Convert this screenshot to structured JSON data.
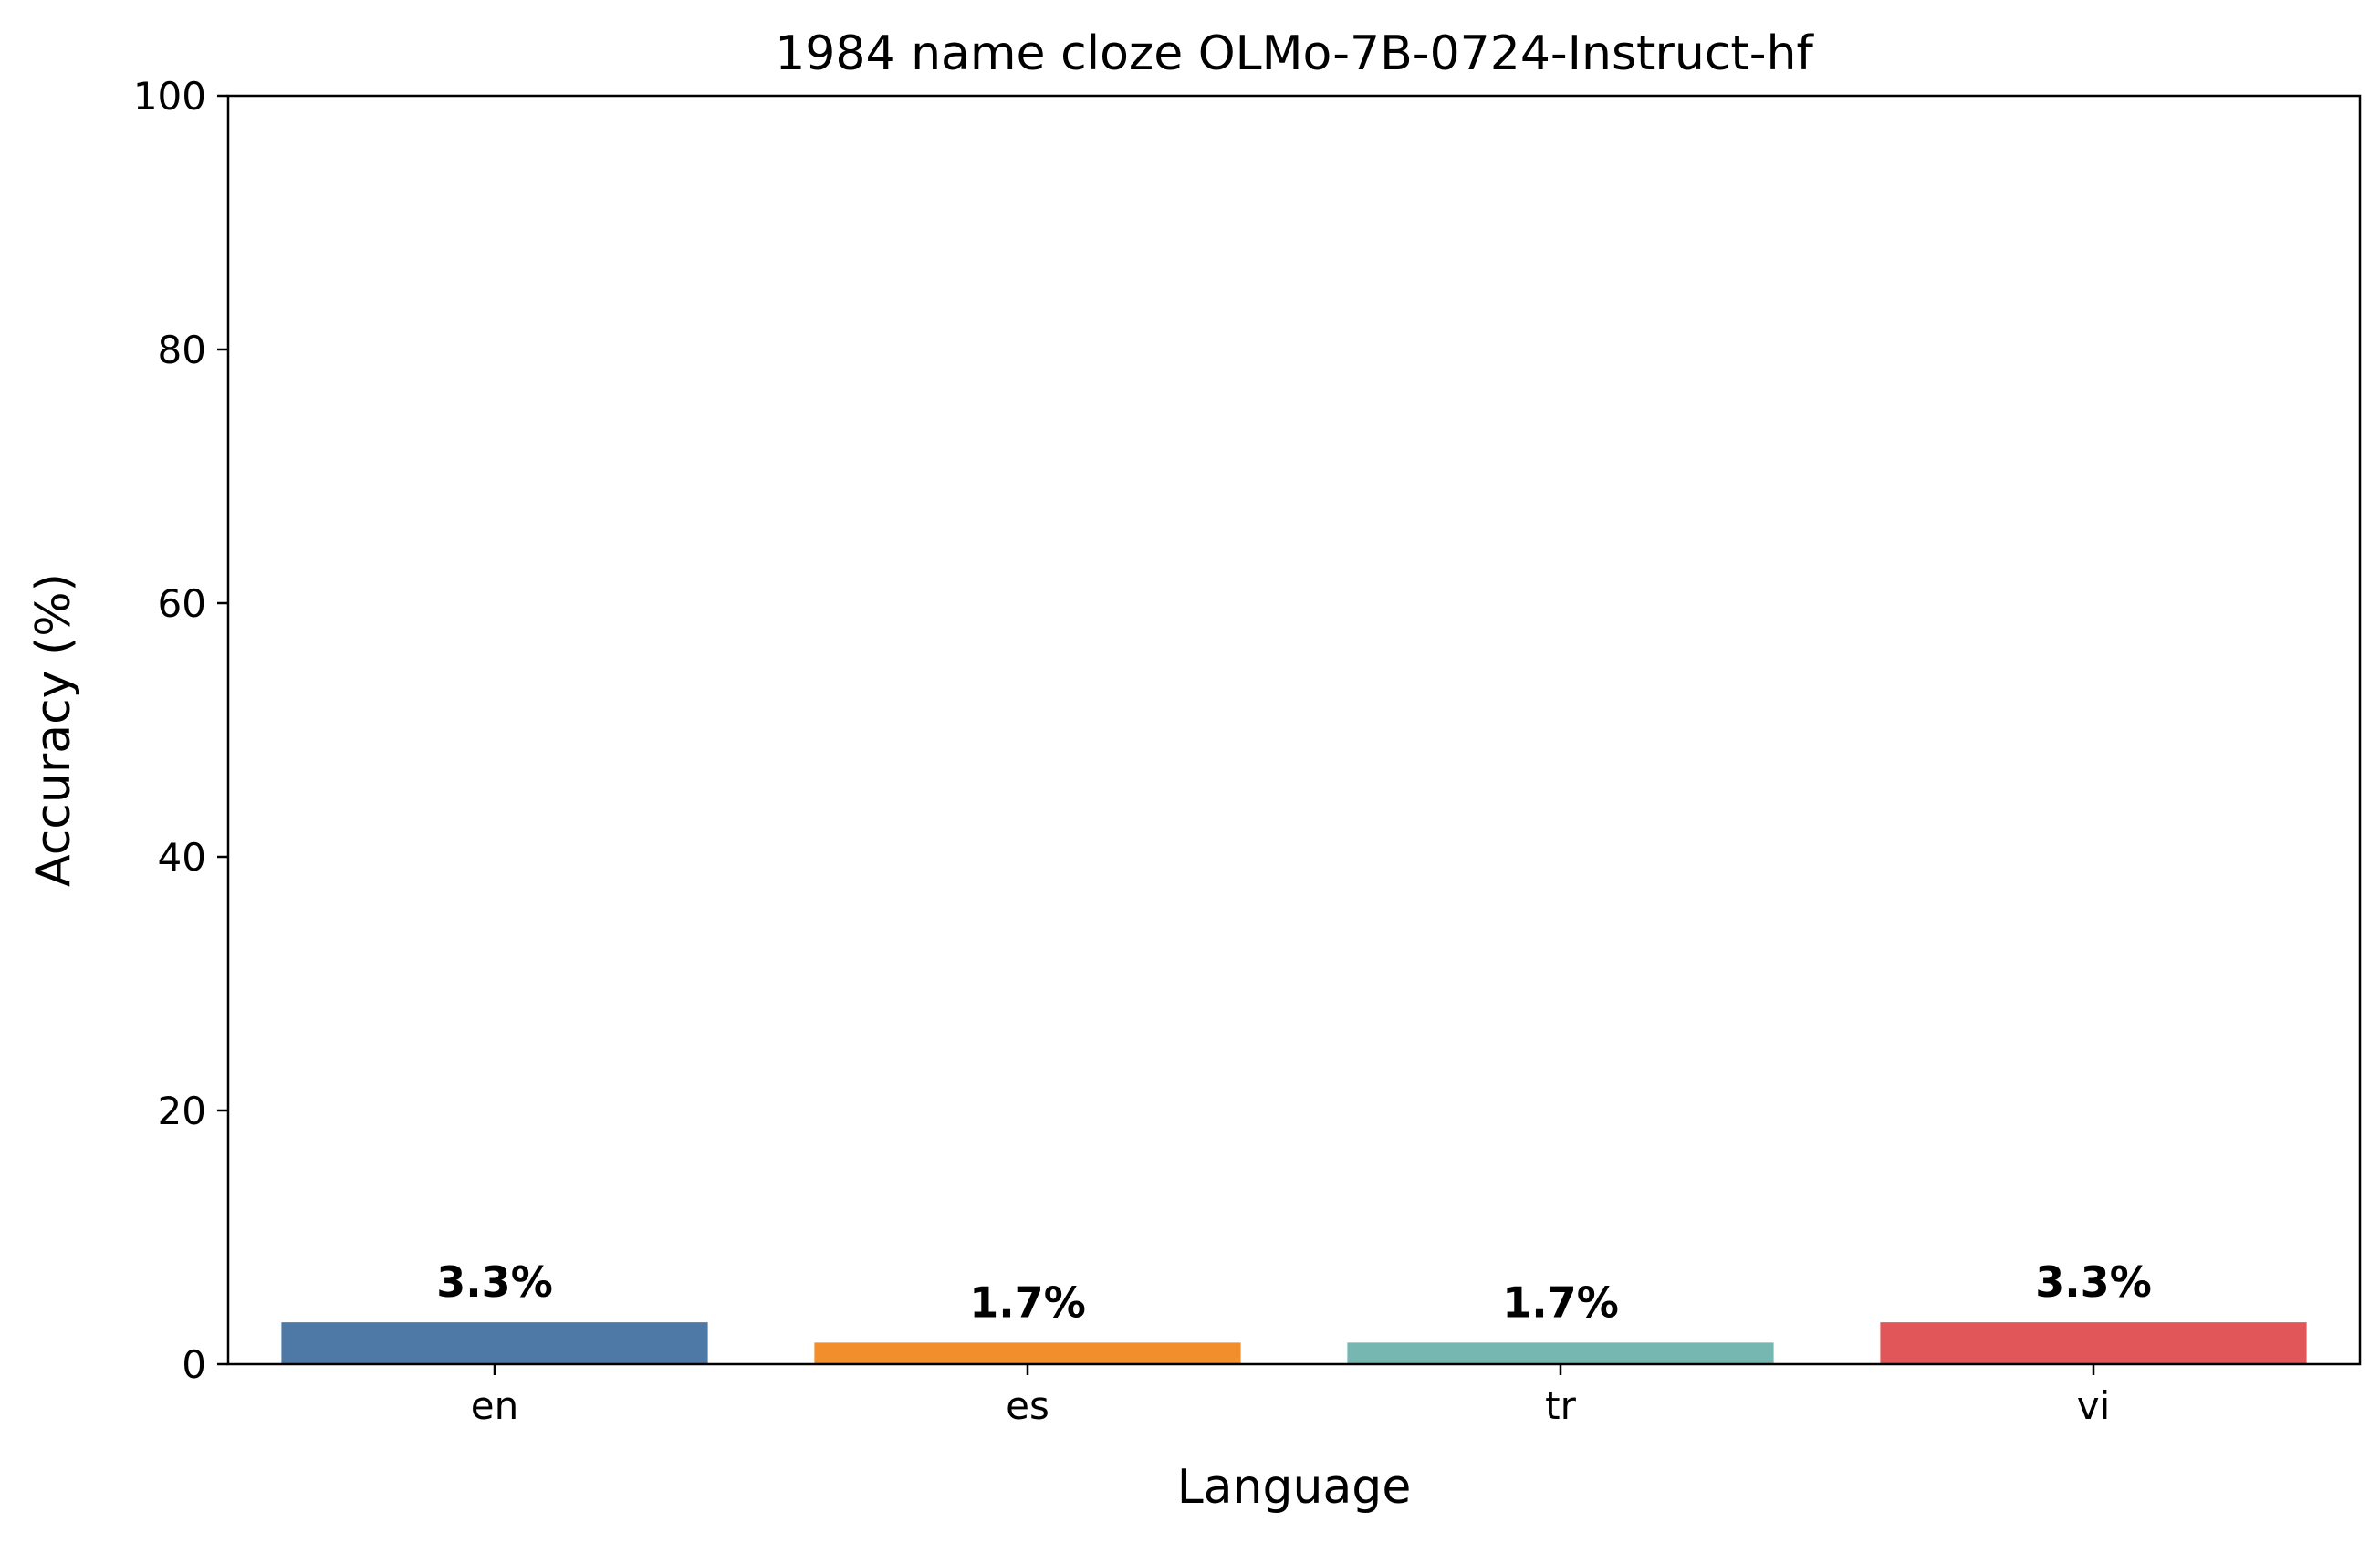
{
  "chart_data": {
    "type": "bar",
    "title": "1984 name cloze OLMo-7B-0724-Instruct-hf",
    "xlabel": "Language",
    "ylabel": "Accuracy (%)",
    "categories": [
      "en",
      "es",
      "tr",
      "vi"
    ],
    "values": [
      3.3,
      1.7,
      1.7,
      3.3
    ],
    "value_labels": [
      "3.3%",
      "1.7%",
      "1.7%",
      "3.3%"
    ],
    "colors": [
      "#4e79a7",
      "#f28e2b",
      "#76b7b2",
      "#e15759"
    ],
    "ylim": [
      0,
      100
    ],
    "yticks": [
      0,
      20,
      40,
      60,
      80,
      100
    ],
    "grid": false,
    "legend": "none"
  }
}
